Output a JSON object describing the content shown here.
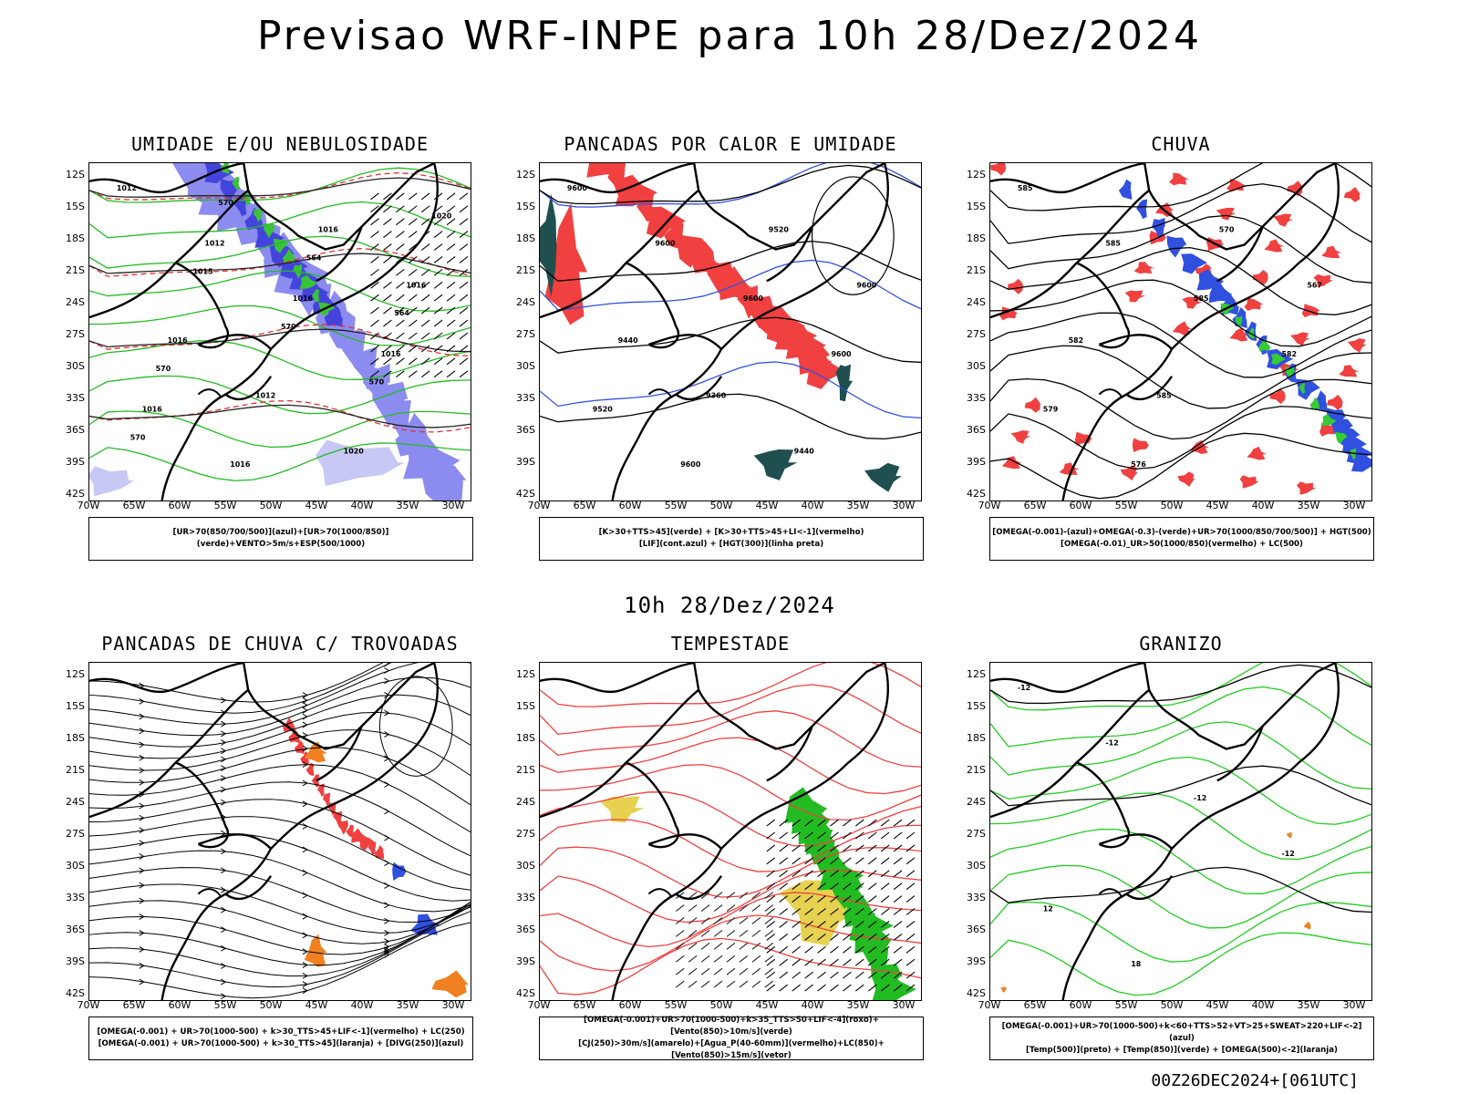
{
  "title": "Previsao WRF-INPE  para 10h 28/Dez/2024",
  "subtitle": "10h 28/Dez/2024",
  "footer": "00Z26DEC2024+[061UTC]",
  "y_ticks": [
    "12S",
    "15S",
    "18S",
    "21S",
    "24S",
    "27S",
    "30S",
    "33S",
    "36S",
    "39S",
    "42S"
  ],
  "x_ticks": [
    "70W",
    "65W",
    "60W",
    "55W",
    "50W",
    "45W",
    "40W",
    "35W",
    "30W"
  ],
  "panels": [
    {
      "title": "UMIDADE E/OU NEBULOSIDADE",
      "legend": [
        "[UR>70(850/700/500)](azul)+[UR>70(1000/850)](verde)+VENTO>5m/s+ESP(500/1000)"
      ],
      "contour_labels": [
        "1012",
        "1012",
        "1016",
        "1016",
        "1016",
        "1016",
        "1016",
        "1016",
        "1016",
        "1012",
        "1020",
        "1020",
        "1015",
        "570",
        "570",
        "570",
        "570",
        "564",
        "564",
        "570"
      ]
    },
    {
      "title": "PANCADAS POR CALOR E UMIDADE",
      "legend": [
        "[K>30+TTS>45](verde) + [K>30+TTS>45+LI<-1](vermelho)",
        "[LIF](cont.azul) + [HGT(300)](linha preta)"
      ],
      "contour_labels": [
        "9600",
        "9600",
        "9600",
        "9600",
        "9520",
        "9600",
        "9520",
        "9600",
        "9440",
        "9360",
        "9440"
      ]
    },
    {
      "title": "CHUVA",
      "legend": [
        "[OMEGA(-0.001)-(azul)+OMEGA(-0.3)-(verde)+UR>70(1000/850/700/500)] + HGT(500)",
        "[OMEGA(-0.01)_UR>50(1000/850)(vermelho) + LC(500)"
      ],
      "contour_labels": [
        "585",
        "585",
        "585",
        "582",
        "579",
        "576",
        "570",
        "567",
        "582",
        "585"
      ]
    },
    {
      "title": "PANCADAS DE CHUVA C/ TROVOADAS",
      "legend": [
        "[OMEGA(-0.001) + UR>70(1000-500) + k>30_TTS>45+LIF<-1](vermelho) + LC(250)",
        "[OMEGA(-0.001) + UR>70(1000-500) + k>30_TTS>45](laranja) + [DIVG(250)](azul)"
      ],
      "contour_labels": []
    },
    {
      "title": "TEMPESTADE",
      "legend": [
        "[OMEGA(-0.001)+UR>70(1000-500)+k>35_TTS>50+LIF<-4](roxo)+[Vento(850)>10m/s](verde)",
        "[CJ(250)>30m/s](amarelo)+[Agua_P(40-60mm)](vermelho)+LC(850)+[Vento(850)>15m/s](vetor)"
      ],
      "contour_labels": []
    },
    {
      "title": "GRANIZO",
      "legend": [
        "[OMEGA(-0.001)+UR>70(1000-500)+k<60+TTS>52+VT>25+SWEAT>220+LIF<-2](azul)",
        "[Temp(500)](preto) + [Temp(850)](verde) + [OMEGA(500)<-2](laranja)"
      ],
      "contour_labels": [
        "-12",
        "-12",
        "-12",
        "-12",
        "12",
        "18"
      ]
    }
  ]
}
